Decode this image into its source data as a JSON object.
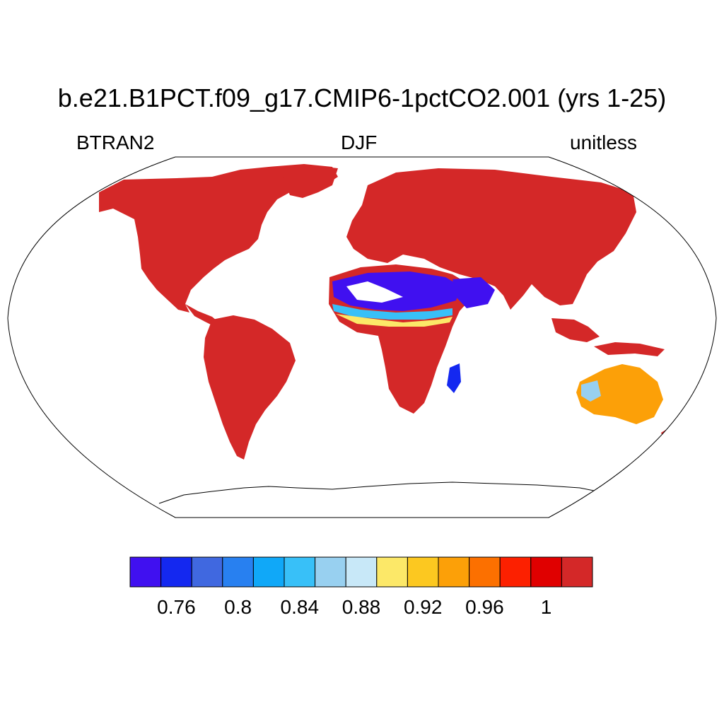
{
  "title": "b.e21.B1PCT.f09_g17.CMIP6-1pctCO2.001 (yrs 1-25)",
  "subtitle_left": "BTRAN2",
  "subtitle_center": "DJF",
  "subtitle_right": "unitless",
  "colorbar": {
    "colors": [
      "#4010f0",
      "#1428f0",
      "#4068e0",
      "#2880f0",
      "#10a8f8",
      "#38c0f8",
      "#98d0f0",
      "#c8e8f8",
      "#fce868",
      "#fcc820",
      "#fca008",
      "#fc7000",
      "#fc2000",
      "#e00000",
      "#d42828"
    ],
    "labels": [
      "0.76",
      "0.8",
      "0.84",
      "0.88",
      "0.92",
      "0.96",
      "1"
    ]
  },
  "map": {
    "projection": "Robinson",
    "land_fill": "#d42828",
    "ocean_fill": "#ffffff"
  }
}
